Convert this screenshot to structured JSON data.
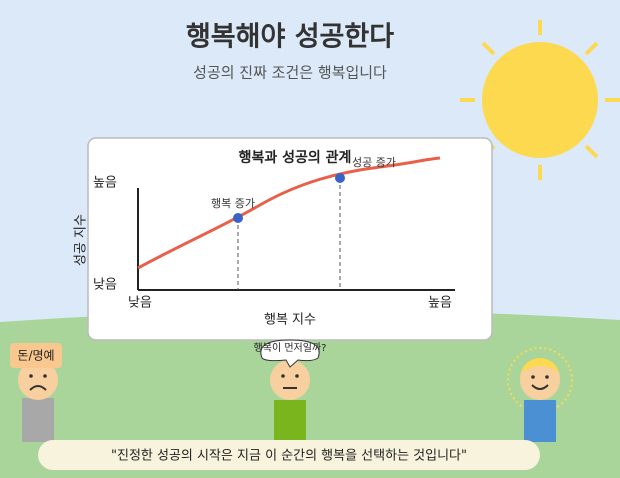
{
  "header": {
    "title": "행복해야 성공한다",
    "subtitle": "성공의 진짜 조건은 행복입니다"
  },
  "chart": {
    "title": "행복과 성공의 관계",
    "y_axis_title": "성공 지수",
    "y_labels": [
      "높음",
      "낮음"
    ],
    "x_labels": [
      "낮음",
      "높음"
    ],
    "x_axis_title": "행복 지수",
    "annotations": [
      "행복 증가",
      "성공 증가"
    ]
  },
  "characters": {
    "sign": "돈/명예",
    "bubble": "행복이 먼저일까?"
  },
  "quote": "\"진정한 성공의 시작은 지금 이 순간의 행복을 선택하는 것입니다\""
}
